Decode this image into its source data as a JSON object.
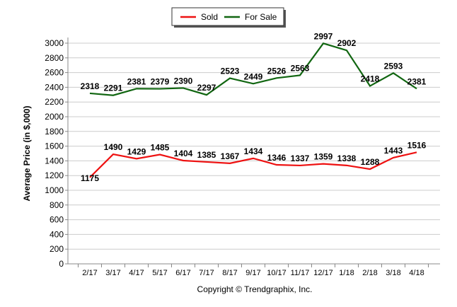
{
  "chart_data": {
    "type": "line",
    "title": "",
    "xlabel": "",
    "ylabel": "Average Price (in $,000)",
    "ylim": [
      0,
      3000
    ],
    "yticks": [
      0,
      200,
      400,
      600,
      800,
      1000,
      1200,
      1400,
      1600,
      1800,
      2000,
      2200,
      2400,
      2600,
      2800,
      3000
    ],
    "grid": true,
    "legend_position": "top-center",
    "categories": [
      "2/17",
      "3/17",
      "4/17",
      "5/17",
      "6/17",
      "7/17",
      "8/17",
      "9/17",
      "10/17",
      "11/17",
      "12/17",
      "1/18",
      "2/18",
      "3/18",
      "4/18"
    ],
    "series": [
      {
        "name": "Sold",
        "color": "#ee1111",
        "values": [
          1175,
          1490,
          1429,
          1485,
          1404,
          1385,
          1367,
          1434,
          1346,
          1337,
          1359,
          1338,
          1288,
          1443,
          1516
        ]
      },
      {
        "name": "For Sale",
        "color": "#116611",
        "values": [
          2318,
          2291,
          2381,
          2379,
          2390,
          2297,
          2523,
          2449,
          2526,
          2563,
          2997,
          2902,
          2418,
          2593,
          2381
        ]
      }
    ],
    "footer": "Copyright © Trendgraphix, Inc."
  }
}
